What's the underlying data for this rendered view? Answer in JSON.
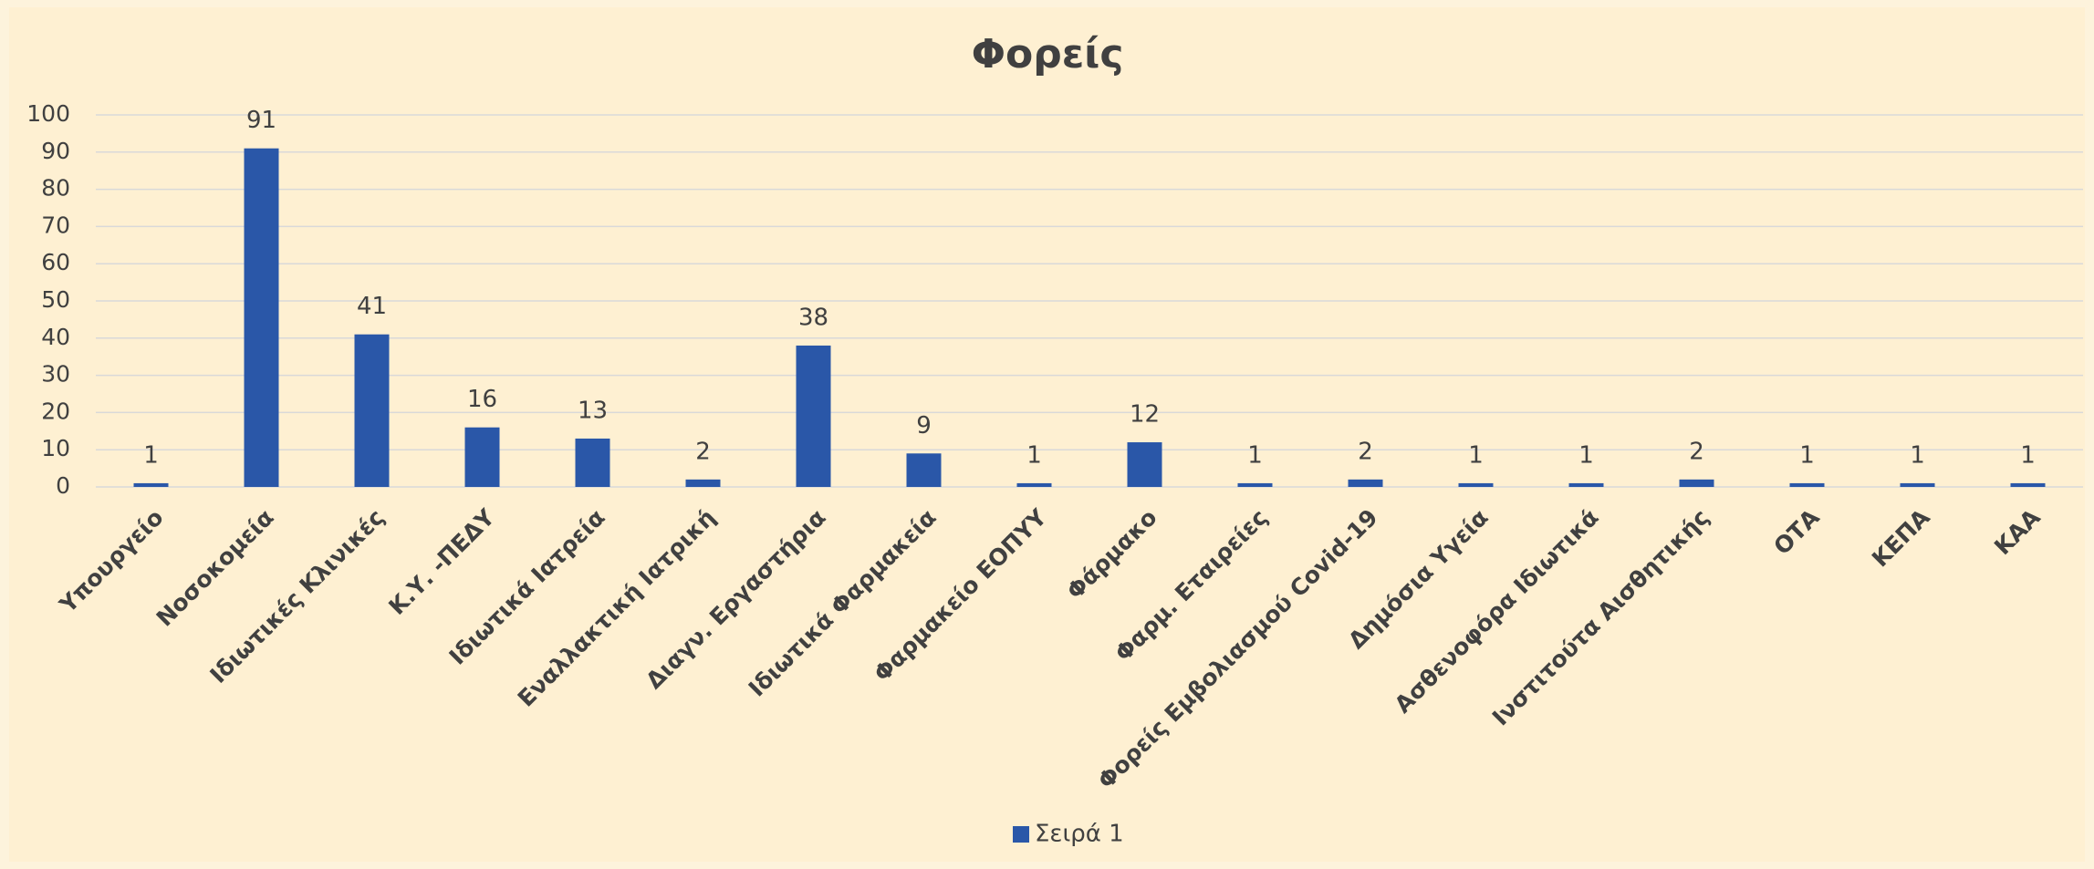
{
  "chart_data": {
    "type": "bar",
    "title": "Φορείς",
    "categories": [
      "Υπουργείο",
      "Νοσοκομεία",
      "Ιδιωτικές Κλινικές",
      "Κ.Υ. -ΠΕΔΥ",
      "Ιδιωτικά Ιατρεία",
      "Εναλλακτική Ιατρική",
      "Διαγν. Εργαστήρια",
      "Ιδιωτικά Φαρμακεία",
      "Φαρμακείο ΕΟΠΥΥ",
      "Φάρμακο",
      "Φαρμ. Εταιρείες",
      "Φορείς Εμβολιασμού Covid-19",
      "Δημόσια Υγεία",
      "Ασθενοφόρα Ιδιωτικά",
      "Ινστιτούτα Αισθητικής",
      "ΟΤΑ",
      "ΚΕΠΑ",
      "ΚΑΑ"
    ],
    "series": [
      {
        "name": "Σειρά 1",
        "color": "#2a57a8",
        "values": [
          1,
          91,
          41,
          16,
          13,
          2,
          38,
          9,
          1,
          12,
          1,
          2,
          1,
          1,
          2,
          1,
          1,
          1
        ]
      }
    ],
    "ylim": [
      0,
      100
    ],
    "yticks": [
      0,
      10,
      20,
      30,
      40,
      50,
      60,
      70,
      80,
      90,
      100
    ],
    "grid": true,
    "legend": "bottom"
  }
}
